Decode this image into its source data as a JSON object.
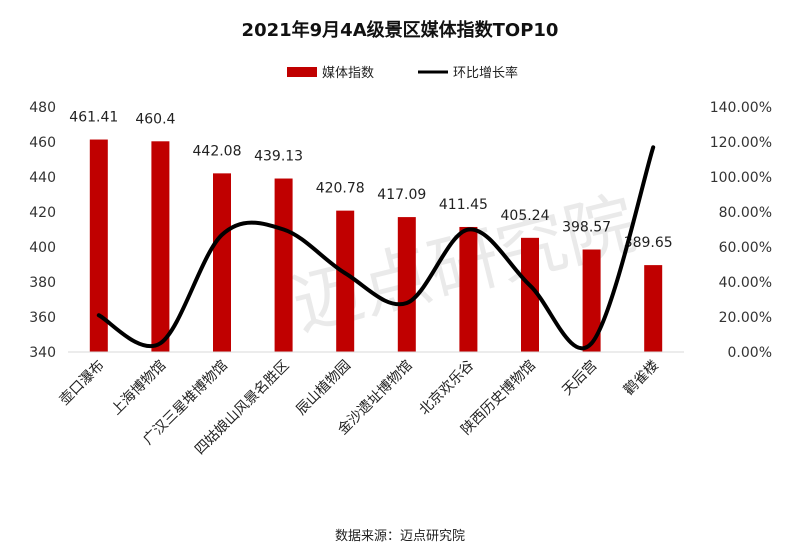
{
  "chart_data": {
    "type": "bar+line",
    "title": "2021年9月4A级景区媒体指数TOP10",
    "categories": [
      "壶口瀑布",
      "上海博物馆",
      "广汉三星堆博物馆",
      "四姑娘山风景名胜区",
      "辰山植物园",
      "金沙遗址博物馆",
      "北京欢乐谷",
      "陕西历史博物馆",
      "天后宫",
      "鹳雀楼"
    ],
    "series": [
      {
        "name": "媒体指数",
        "type": "bar",
        "axis": "left",
        "color": "#C00000",
        "values": [
          461.41,
          460.4,
          442.08,
          439.13,
          420.78,
          417.09,
          411.45,
          405.24,
          398.57,
          389.65
        ],
        "labels": [
          "461.41",
          "460.4",
          "442.08",
          "439.13",
          "420.78",
          "417.09",
          "411.45",
          "405.24",
          "398.57",
          "389.65"
        ]
      },
      {
        "name": "环比增长率",
        "type": "line",
        "axis": "right",
        "color": "#000000",
        "values": [
          21,
          5,
          67,
          70,
          45,
          28,
          70,
          38,
          5,
          117
        ]
      }
    ],
    "ylim_left": [
      340,
      480
    ],
    "yticks_left": [
      "340",
      "360",
      "380",
      "400",
      "420",
      "440",
      "460",
      "480"
    ],
    "ylim_right": [
      0,
      140
    ],
    "yticks_right": [
      "0.00%",
      "20.00%",
      "40.00%",
      "60.00%",
      "80.00%",
      "100.00%",
      "120.00%",
      "140.00%"
    ],
    "legend": "top",
    "grid": false,
    "source": "数据来源：迈点研究院"
  }
}
